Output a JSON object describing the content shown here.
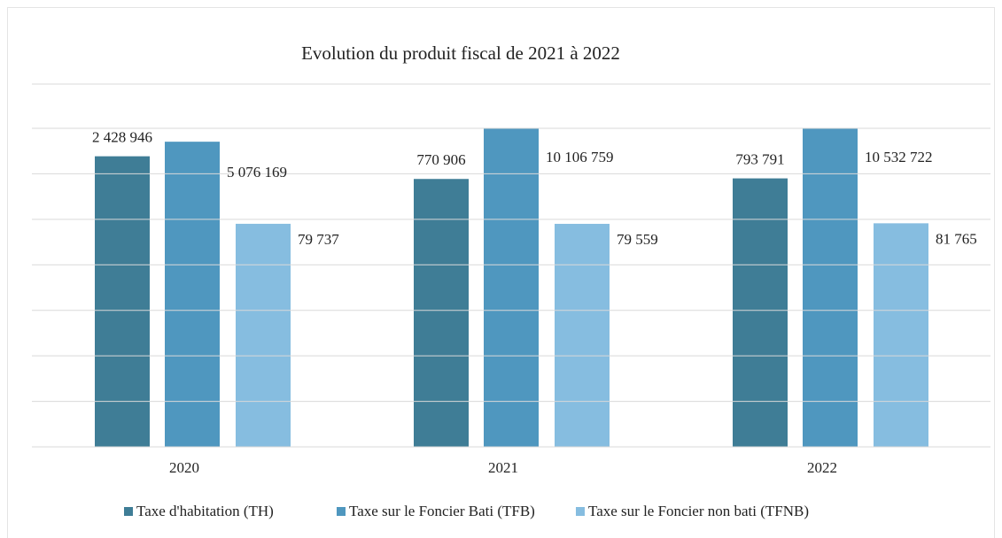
{
  "chart_data": {
    "type": "bar",
    "title": "Evolution du produit fiscal de 2021 à 2022",
    "categories": [
      "2020",
      "2021",
      "2022"
    ],
    "series": [
      {
        "name": "Taxe d'habitation (TH)",
        "color": "#3f7d96",
        "values": [
          2428946,
          770906,
          793791
        ],
        "value_labels": [
          "2 428 946",
          "770 906",
          "793 791"
        ]
      },
      {
        "name": "Taxe sur le Foncier Bati (TFB)",
        "color": "#4f97bf",
        "values": [
          5076169,
          10106759,
          10532722
        ],
        "value_labels": [
          "5 076 169",
          "10 106 759",
          "10 532 722"
        ]
      },
      {
        "name": "Taxe sur le Foncier non bati (TFNB)",
        "color": "#86bde0",
        "values": [
          79737,
          79559,
          81765
        ],
        "value_labels": [
          "79 737",
          "79 559",
          "81 765"
        ]
      }
    ],
    "log_scale": true,
    "ylim": [
      1,
      10000000
    ],
    "yticks": [
      1,
      10,
      100,
      1000,
      10000,
      100000,
      1000000,
      10000000
    ],
    "grid": true,
    "legend": "bottom"
  }
}
